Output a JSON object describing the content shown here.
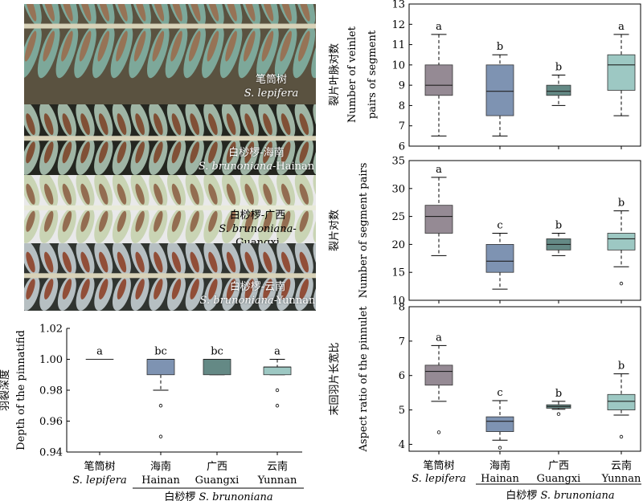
{
  "photos": [
    {
      "zh": "笔筒树",
      "sci": "S. lepifera",
      "region": "",
      "frond_color": "#7da89a",
      "bg": "#5a5240",
      "sorus": "#9a6a4a"
    },
    {
      "zh": "白桫椤-海南",
      "sci": "S. brunoniana",
      "region": "-Hainan",
      "frond_color": "#9fb5a5",
      "bg": "#242620",
      "sorus": "#7a3e22"
    },
    {
      "zh": "白桫椤-广西",
      "sci": "S. brunoniana",
      "region": "-Guangxi",
      "frond_color": "#c9d4b4",
      "bg": "#e9e9ea",
      "sorus": "#8a5a40"
    },
    {
      "zh": "白桫椤-云南",
      "sci": "S. brunoniana",
      "region": "-Yunnan",
      "frond_color": "#b6bfc2",
      "bg": "#303430",
      "sorus": "#8b3a20"
    }
  ],
  "colors": {
    "lepifera": "#958a94",
    "hainan": "#7e93b2",
    "guangxi": "#648985",
    "yunnan": "#9dc8c3"
  },
  "groups_axis": {
    "zh": [
      "笔筒树",
      "海南",
      "广西",
      "云南"
    ],
    "en": [
      "S. lepifera",
      "Hainan",
      "Guangxi",
      "Yunnan"
    ],
    "bracket_zh": "白桫椤",
    "bracket_sci": "S. brunoniana"
  },
  "chart_data": [
    {
      "type": "box",
      "ylabel_zh": "裂片叶脉对数",
      "ylabel_en": [
        "Number of veinlet",
        "pairs of segment"
      ],
      "ylim": [
        6,
        13
      ],
      "yticks": [
        6,
        7,
        8,
        9,
        10,
        11,
        12,
        13
      ],
      "boxes": [
        {
          "group": "S. lepifera",
          "min": 6.5,
          "q1": 8.5,
          "median": 9,
          "q3": 10,
          "max": 11.5,
          "letter": "a",
          "outliers": []
        },
        {
          "group": "Hainan",
          "min": 6.5,
          "q1": 7.5,
          "median": 8.7,
          "q3": 10,
          "max": 10.5,
          "letter": "b",
          "outliers": []
        },
        {
          "group": "Guangxi",
          "min": 8,
          "q1": 8.5,
          "median": 8.7,
          "q3": 9,
          "max": 9.5,
          "letter": "b",
          "outliers": []
        },
        {
          "group": "Yunnan",
          "min": 7.5,
          "q1": 8.75,
          "median": 10,
          "q3": 10.5,
          "max": 11.5,
          "letter": "a",
          "outliers": []
        }
      ]
    },
    {
      "type": "box",
      "ylabel_zh": "裂片对数",
      "ylabel_en": [
        "Number of segment pairs"
      ],
      "ylim": [
        10,
        35
      ],
      "yticks": [
        10,
        15,
        20,
        25,
        30,
        35
      ],
      "boxes": [
        {
          "group": "S. lepifera",
          "min": 18,
          "q1": 22,
          "median": 25,
          "q3": 27,
          "max": 32,
          "letter": "a",
          "outliers": []
        },
        {
          "group": "Hainan",
          "min": 12,
          "q1": 15,
          "median": 17,
          "q3": 20,
          "max": 22,
          "letter": "c",
          "outliers": []
        },
        {
          "group": "Guangxi",
          "min": 18,
          "q1": 19,
          "median": 20,
          "q3": 21,
          "max": 22,
          "letter": "b",
          "outliers": []
        },
        {
          "group": "Yunnan",
          "min": 16,
          "q1": 19,
          "median": 21,
          "q3": 22,
          "max": 26,
          "letter": "b",
          "outliers": [
            13
          ]
        }
      ]
    },
    {
      "type": "box",
      "ylabel_zh": "末回羽片长宽比",
      "ylabel_en": [
        "Aspect ratio of the pinnulet"
      ],
      "ylim": [
        3.8,
        8
      ],
      "yticks": [
        4,
        5,
        6,
        7,
        8
      ],
      "boxes": [
        {
          "group": "S. lepifera",
          "min": 5.25,
          "q1": 5.72,
          "median": 6.12,
          "q3": 6.3,
          "max": 6.87,
          "letter": "a",
          "outliers": [
            4.35
          ]
        },
        {
          "group": "Hainan",
          "min": 4.12,
          "q1": 4.37,
          "median": 4.67,
          "q3": 4.8,
          "max": 5.27,
          "letter": "c",
          "outliers": [
            3.9
          ]
        },
        {
          "group": "Guangxi",
          "min": 5.02,
          "q1": 5.05,
          "median": 5.1,
          "q3": 5.15,
          "max": 5.25,
          "letter": "b",
          "outliers": [
            4.88
          ]
        },
        {
          "group": "Yunnan",
          "min": 4.85,
          "q1": 5.0,
          "median": 5.25,
          "q3": 5.45,
          "max": 6.05,
          "letter": "b",
          "outliers": [
            4.22
          ]
        }
      ]
    },
    {
      "type": "box",
      "ylabel_zh": "羽裂深度",
      "ylabel_en": [
        "Depth of the pinnatifid"
      ],
      "ylim": [
        0.94,
        1.02
      ],
      "yticks": [
        0.94,
        0.96,
        0.98,
        1.0,
        1.02
      ],
      "ytick_labels": [
        "0.94",
        "0.96",
        "0.98",
        "1.00",
        "1.02"
      ],
      "boxes": [
        {
          "group": "S. lepifera",
          "min": 1.0,
          "q1": 1.0,
          "median": 1.0,
          "q3": 1.0,
          "max": 1.0,
          "letter": "a",
          "outliers": []
        },
        {
          "group": "Hainan",
          "min": 0.98,
          "q1": 0.99,
          "median": 1.0,
          "q3": 1.0,
          "max": 1.0,
          "letter": "bc",
          "outliers": [
            0.97,
            0.95
          ]
        },
        {
          "group": "Guangxi",
          "min": 0.99,
          "q1": 0.99,
          "median": 1.0,
          "q3": 1.0,
          "max": 1.0,
          "letter": "bc",
          "outliers": []
        },
        {
          "group": "Yunnan",
          "min": 0.99,
          "q1": 0.99,
          "median": 0.995,
          "q3": 0.995,
          "max": 1.0,
          "letter": "a",
          "outliers": [
            0.98,
            0.97
          ]
        }
      ]
    }
  ]
}
